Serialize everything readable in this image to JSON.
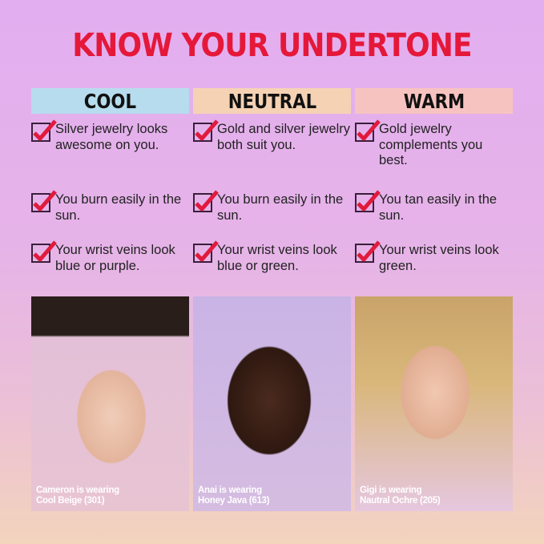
{
  "title": "KNOW YOUR UNDERTONE",
  "colors": {
    "title": "#e5183a",
    "cool": "#b6dcee",
    "neutral": "#f5d2b4",
    "warm": "#f7c3c0",
    "check": "#e01a3c"
  },
  "columns": [
    {
      "heading": "COOL",
      "items": [
        "Silver jewelry looks awesome on you.",
        "You burn easily in the sun.",
        "Your wrist veins look blue or purple."
      ],
      "caption": [
        "Cameron is wearing",
        "Cool Beige (301)"
      ]
    },
    {
      "heading": "NEUTRAL",
      "items": [
        "Gold and silver jewelry both suit you.",
        "You burn easily in the sun.",
        "Your wrist veins look blue or green."
      ],
      "caption": [
        "Anai is wearing",
        "Honey Java (613)"
      ]
    },
    {
      "heading": "WARM",
      "items": [
        "Gold jewelry complements you best.",
        "You tan easily in the sun.",
        "Your wrist veins look green."
      ],
      "caption": [
        "Gigi is wearing",
        "Nautral Ochre (205)"
      ]
    }
  ]
}
